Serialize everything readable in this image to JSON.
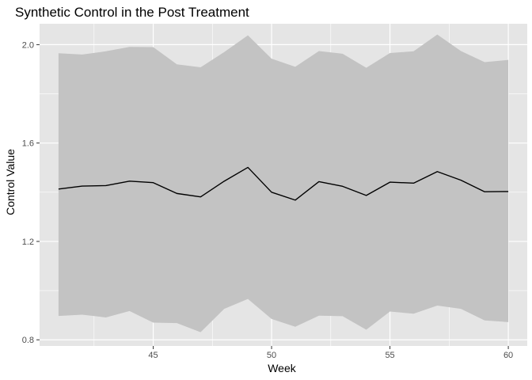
{
  "chart_data": {
    "type": "line",
    "title": "Synthetic Control in the Post Treatment",
    "xlabel": "Week",
    "ylabel": "Control Value",
    "xlim": [
      40.2,
      60.8
    ],
    "ylim": [
      0.775,
      2.085
    ],
    "x_ticks": [
      45,
      50,
      55,
      60
    ],
    "y_ticks": [
      0.8,
      1.2,
      1.6,
      2.0
    ],
    "x_tick_labels": [
      "45",
      "50",
      "55",
      "60"
    ],
    "y_tick_labels": [
      "0.8",
      "1.2",
      "1.6",
      "2.0"
    ],
    "grid": true,
    "legend": "none",
    "series": [
      {
        "x": [
          41,
          42,
          43,
          44,
          45,
          46,
          47,
          48,
          49,
          50,
          51,
          52,
          53,
          54,
          55,
          56,
          57,
          58,
          59,
          60
        ],
        "values": [
          1.413,
          1.425,
          1.427,
          1.445,
          1.439,
          1.395,
          1.381,
          1.445,
          1.501,
          1.4,
          1.368,
          1.443,
          1.424,
          1.387,
          1.441,
          1.437,
          1.484,
          1.449,
          1.402,
          1.403
        ],
        "lower": [
          0.897,
          0.902,
          0.891,
          0.917,
          0.87,
          0.868,
          0.831,
          0.926,
          0.966,
          0.885,
          0.853,
          0.898,
          0.896,
          0.841,
          0.915,
          0.906,
          0.939,
          0.926,
          0.879,
          0.872
        ],
        "upper": [
          1.965,
          1.96,
          1.973,
          1.991,
          1.99,
          1.92,
          1.908,
          1.97,
          2.038,
          1.943,
          1.91,
          1.974,
          1.963,
          1.906,
          1.966,
          1.973,
          2.041,
          1.974,
          1.929,
          1.938
        ]
      }
    ]
  },
  "colors": {
    "panel": "#e5e5e5",
    "grid_major": "#ffffff",
    "ribbon": "#c3c3c3",
    "line": "#000000",
    "tick": "#333333"
  }
}
